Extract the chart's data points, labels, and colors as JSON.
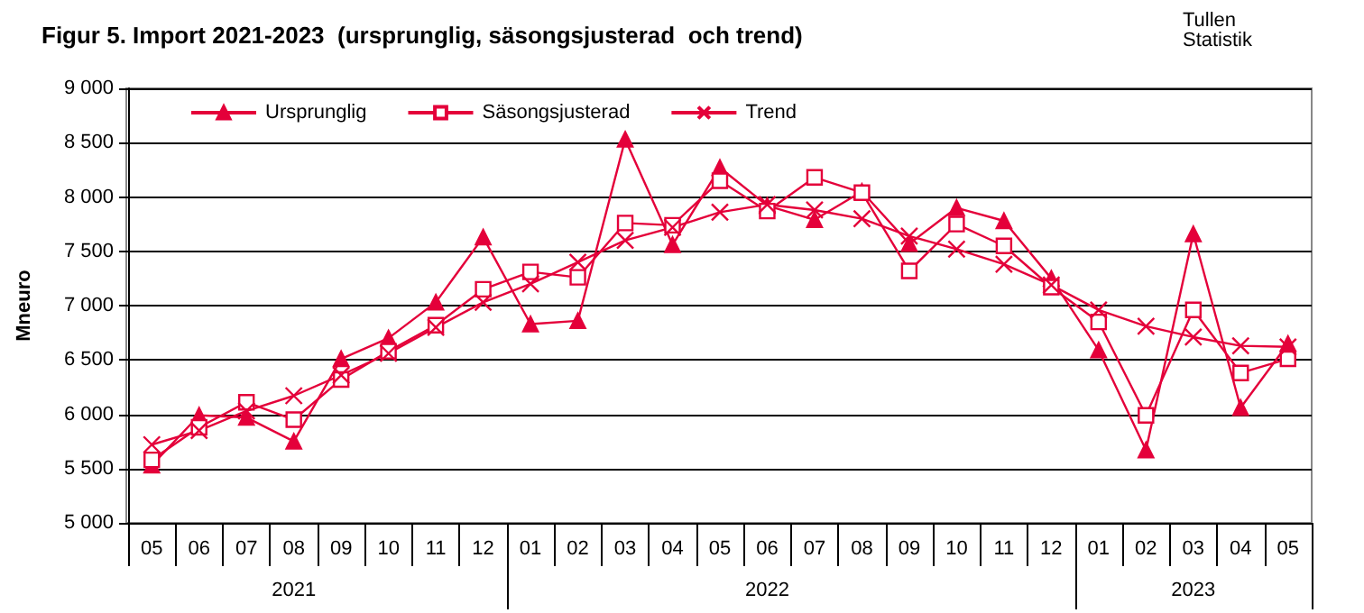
{
  "chart_data": {
    "type": "line",
    "title": "Figur 5. Import 2021-2023  (ursprunglig, säsongsjusterad  och trend)",
    "ylabel": "Mneuro",
    "annotations": [
      "Tullen\nStatistik",
      "2021",
      "2022",
      "2023"
    ],
    "categories": [
      "05",
      "06",
      "07",
      "08",
      "09",
      "10",
      "11",
      "12",
      "01",
      "02",
      "03",
      "04",
      "05",
      "06",
      "07",
      "08",
      "09",
      "10",
      "11",
      "12",
      "01",
      "02",
      "03",
      "04",
      "05"
    ],
    "series": [
      {
        "name": "Ursprunglig",
        "color": "#e4003a",
        "marker": "triangle",
        "values": [
          5530,
          5990,
          5970,
          5750,
          6510,
          6700,
          7030,
          7630,
          6830,
          6860,
          8530,
          7560,
          8270,
          7920,
          7790,
          8050,
          7570,
          7900,
          7780,
          7250,
          6590,
          5670,
          7660,
          6060,
          6650
        ]
      },
      {
        "name": "Säsongsjusterad",
        "color": "#e4003a",
        "marker": "square",
        "values": [
          5580,
          5880,
          6110,
          5950,
          6320,
          6580,
          6820,
          7150,
          7310,
          7260,
          7760,
          7740,
          8150,
          7870,
          8180,
          8040,
          7320,
          7750,
          7550,
          7170,
          6850,
          5990,
          6960,
          6380,
          6510
        ]
      },
      {
        "name": "Trend",
        "color": "#e4003a",
        "marker": "cross",
        "values": [
          5720,
          5850,
          6030,
          6170,
          6360,
          6560,
          6800,
          7030,
          7200,
          7400,
          7600,
          7720,
          7860,
          7930,
          7880,
          7800,
          7640,
          7520,
          7380,
          7190,
          6960,
          6810,
          6710,
          6630,
          6620
        ]
      }
    ],
    "ylim": [
      5000,
      9000
    ],
    "yticks": [
      {
        "value": 5000,
        "label": "5 000"
      },
      {
        "value": 5500,
        "label": "5 500"
      },
      {
        "value": 6000,
        "label": "6 000"
      },
      {
        "value": 6500,
        "label": "6 500"
      },
      {
        "value": 7000,
        "label": "7 000"
      },
      {
        "value": 7500,
        "label": "7 500"
      },
      {
        "value": 8000,
        "label": "8 000"
      },
      {
        "value": 8500,
        "label": "8 500"
      },
      {
        "value": 9000,
        "label": "9 000"
      }
    ],
    "grid": "y",
    "legend": "top left",
    "line_style": "solid"
  }
}
